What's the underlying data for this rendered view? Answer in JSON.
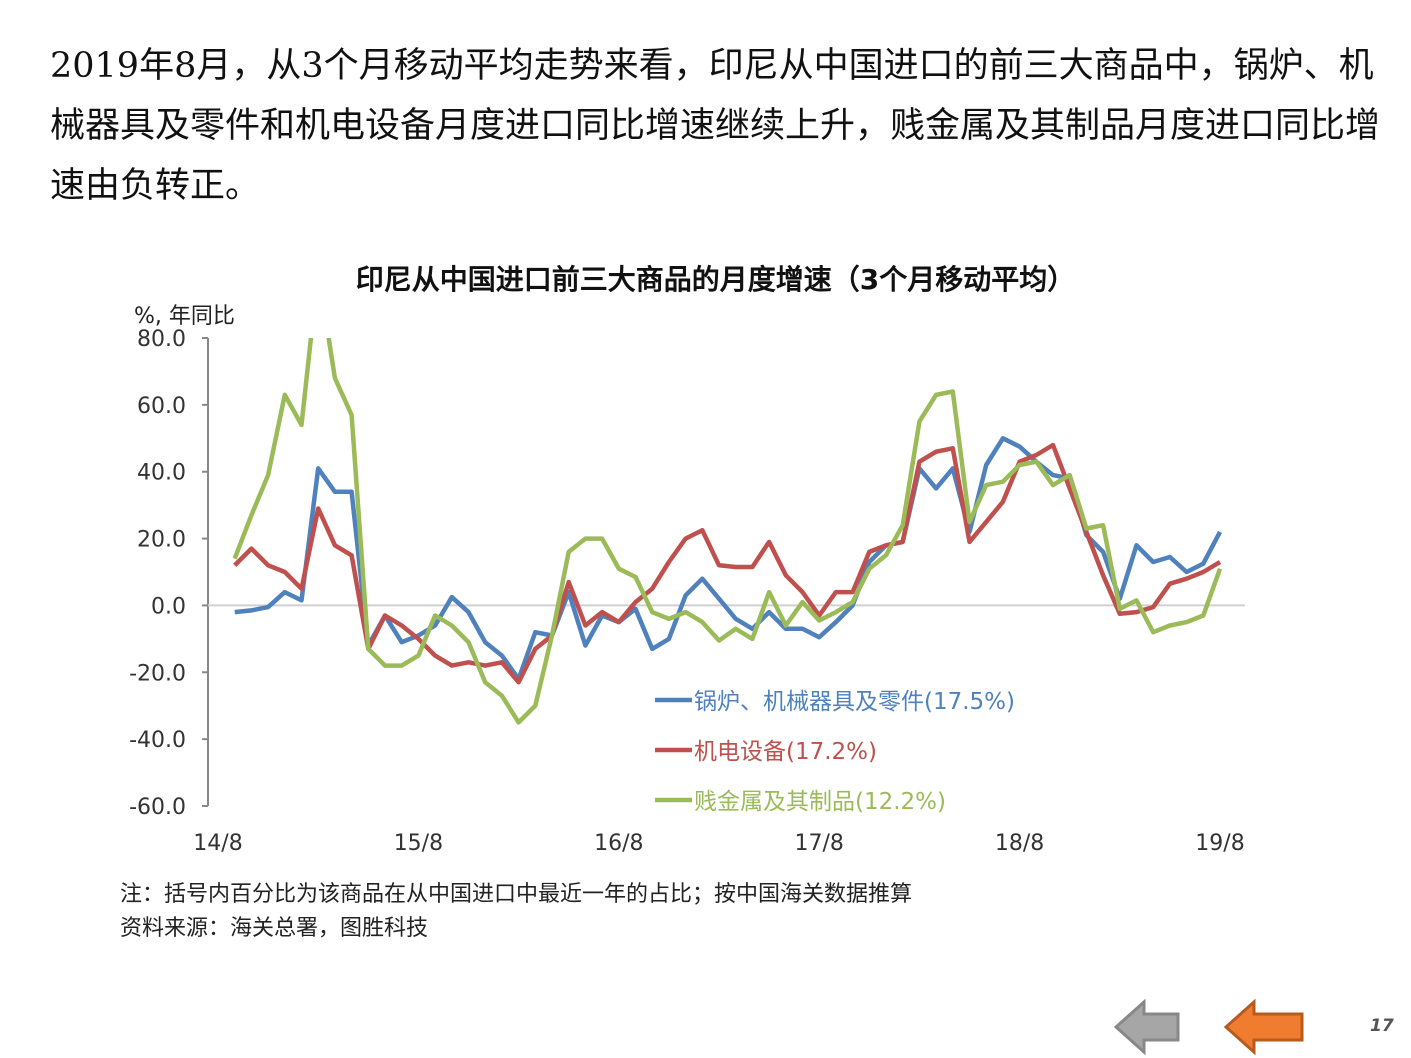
{
  "intro_text": "2019年8月，从3个月移动平均走势来看，印尼从中国进口的前三大商品中，锅炉、机械器具及零件和机电设备月度进口同比增速继续上升，贱金属及其制品月度进口同比增速由负转正。",
  "chart_data": {
    "type": "line",
    "title": "印尼从中国进口前三大商品的月度增速（3个月移动平均）",
    "ylabel": "%, 年同比",
    "xlabel": "",
    "ylim": [
      -60,
      80
    ],
    "yticks": [
      "80.0",
      "60.0",
      "40.0",
      "20.0",
      "0.0",
      "-20.0",
      "-40.0",
      "-60.0"
    ],
    "ytick_values": [
      80,
      60,
      40,
      20,
      0,
      -20,
      -40,
      -60
    ],
    "xticks": [
      "14/8",
      "15/8",
      "16/8",
      "17/8",
      "18/8",
      "19/8"
    ],
    "legend_position": "lower-right",
    "series": [
      {
        "name": "锅炉、机械器具及零件(17.5%)",
        "color": "#4f81bd",
        "values": [
          -2,
          -1.5,
          -0.5,
          4,
          1.5,
          41,
          34,
          34,
          -12,
          -3,
          -11,
          -9,
          -6,
          2.5,
          -2,
          -11,
          -15,
          -22,
          -8,
          -9,
          4,
          -12,
          -3,
          -5,
          -1,
          -13,
          -10,
          3,
          8,
          2,
          -4,
          -7,
          -2,
          -7,
          -7,
          -9.5,
          -5,
          0,
          13,
          18,
          19,
          41,
          35,
          41,
          22,
          42,
          50,
          47.5,
          43,
          39,
          38,
          21,
          16,
          2,
          18,
          13,
          14.5,
          10,
          12.5,
          22
        ]
      },
      {
        "name": "机电设备(17.2%)",
        "color": "#c0504d",
        "values": [
          12,
          17,
          12,
          10,
          5,
          29,
          18,
          15,
          -13,
          -3,
          -6,
          -10,
          -15,
          -18,
          -17,
          -18,
          -17,
          -23,
          -13,
          -9,
          7,
          -6,
          -2,
          -5,
          1,
          5,
          13,
          20,
          22.5,
          12,
          11.5,
          11.5,
          19,
          9,
          4,
          -3,
          4,
          4,
          16,
          18,
          19,
          43,
          46,
          47,
          19,
          25,
          31,
          43,
          45,
          48,
          35,
          22,
          9,
          -2.5,
          -2,
          -0.5,
          6.5,
          8,
          10,
          13
        ]
      },
      {
        "name": "贱金属及其制品(12.2%)",
        "color": "#9bbb59",
        "values": [
          14,
          27,
          39,
          63,
          54,
          100,
          68,
          57,
          -13,
          -18,
          -18,
          -15,
          -3,
          -6,
          -11,
          -23,
          -27,
          -35,
          -30,
          -9,
          16,
          20,
          20,
          11,
          8.5,
          -2,
          -4,
          -2,
          -5,
          -10.5,
          -7,
          -10,
          4,
          -6,
          1,
          -4.5,
          -2,
          1,
          11,
          15,
          24,
          55,
          63,
          64,
          25,
          36,
          37,
          42,
          43,
          36,
          39,
          23,
          24,
          -1,
          1.5,
          -8,
          -6,
          -5,
          -3,
          11
        ]
      }
    ]
  },
  "notes": [
    "注：括号内百分比为该商品在从中国进口中最近一年的占比；按中国海关数据推算",
    "资料来源：海关总署，图胜科技"
  ],
  "page_number": "17",
  "nav": {
    "back_color": "#a6a6a6",
    "forward_color": "#f07c30"
  }
}
